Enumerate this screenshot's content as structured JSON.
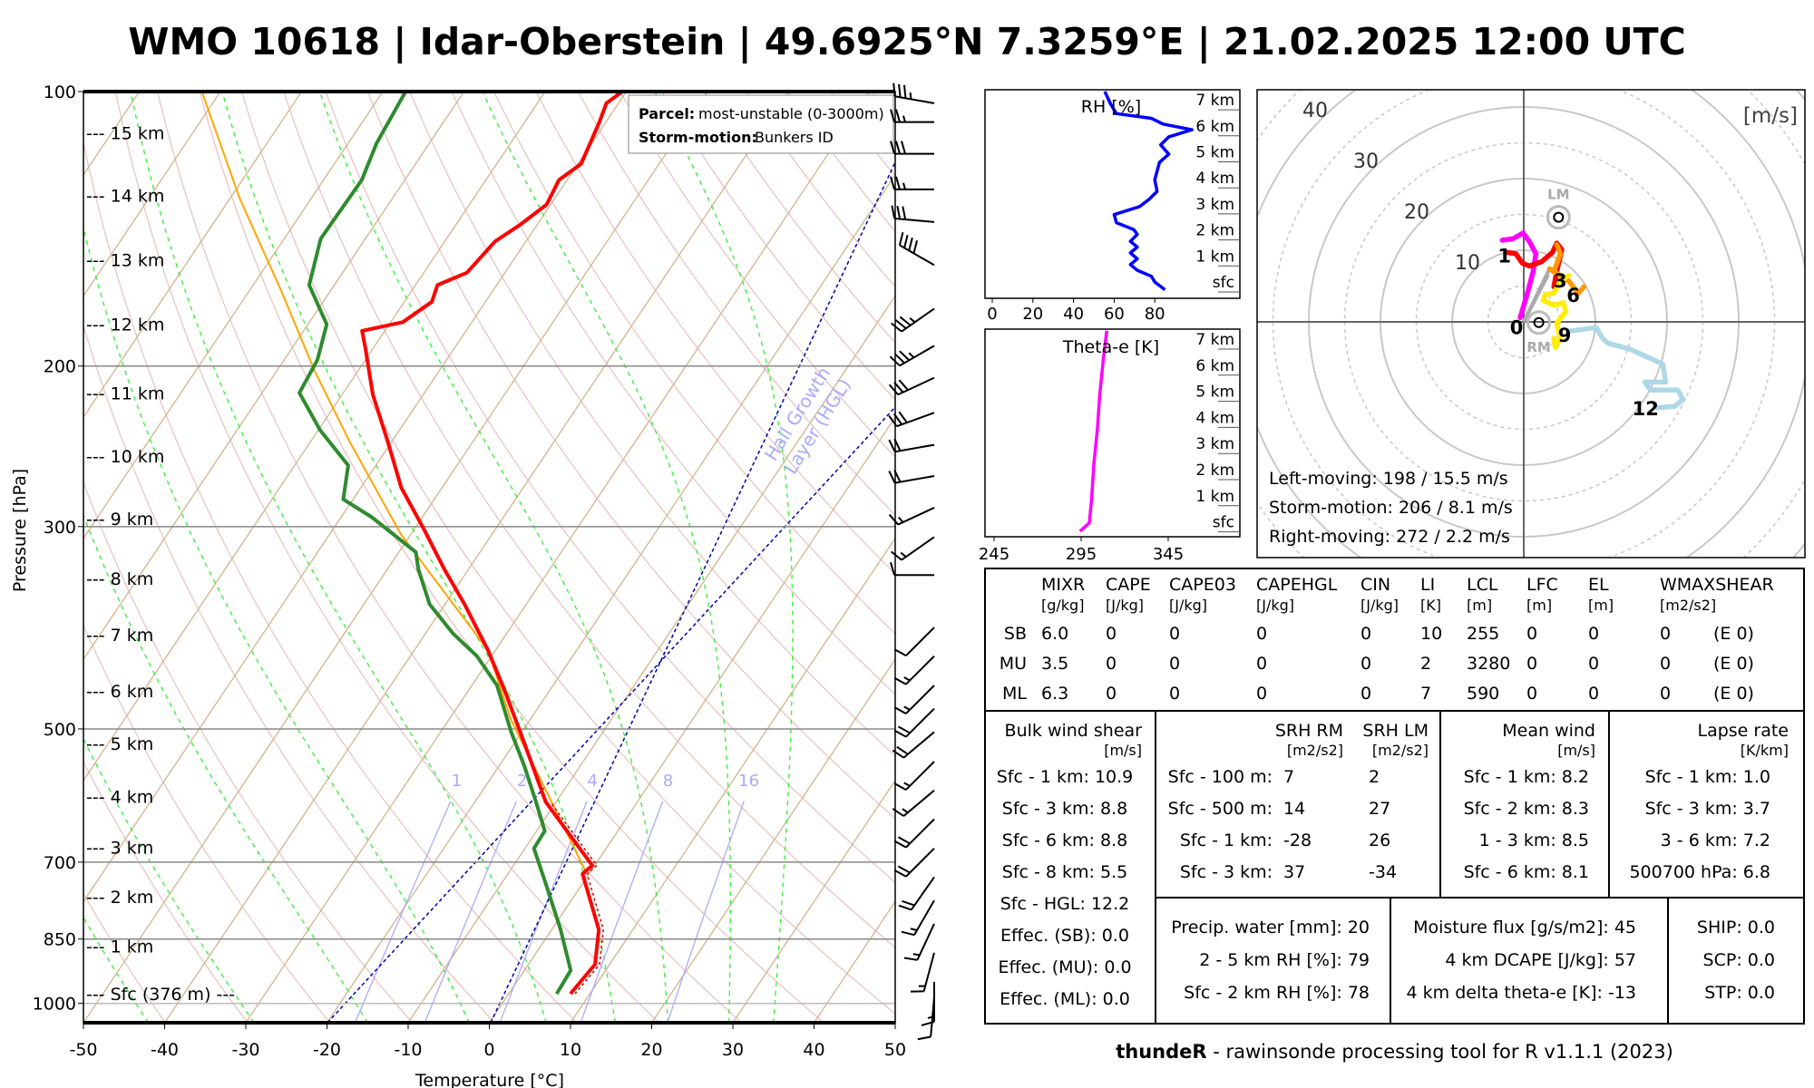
{
  "title": "WMO 10618 | Idar-Oberstein | 49.6925°N 7.3259°E | 21.02.2025 12:00 UTC",
  "footer": {
    "bold": "thundeR",
    "rest": " - rawinsonde processing tool for R v1.1.1 (2023)"
  },
  "chart_data": [
    {
      "type": "line",
      "name": "skew-T log-p diagram",
      "xlabel": "Temperature [°C]",
      "ylabel": "Pressure [hPa]",
      "xlim": [
        -50,
        50
      ],
      "ylim": [
        1050,
        100
      ],
      "x_ticks": [
        "-50",
        "-40",
        "-30",
        "-20",
        "-10",
        "0",
        "10",
        "20",
        "30",
        "40",
        "50"
      ],
      "p_ticks": [
        "100",
        "200",
        "300",
        "500",
        "700",
        "850",
        "1000"
      ],
      "mixing_ratio_labels": [
        "1",
        "2",
        "4",
        "8",
        "16"
      ],
      "hgl_label": [
        "Hail Growth",
        "Layer (HGL)"
      ],
      "legend": {
        "parcel_label": "Parcel:",
        "parcel_value": "most-unstable (0-3000m)",
        "storm_label": "Storm-motion:",
        "storm_value": "Bunkers ID"
      },
      "height_labels": [
        {
          "label": "--- 15 km",
          "p": 111
        },
        {
          "label": "--- 14 km",
          "p": 130
        },
        {
          "label": "--- 13 km",
          "p": 153
        },
        {
          "label": "--- 12 km",
          "p": 180
        },
        {
          "label": "--- 11 km",
          "p": 214
        },
        {
          "label": "--- 10 km",
          "p": 251
        },
        {
          "label": "--- 9 km",
          "p": 294
        },
        {
          "label": "--- 8 km",
          "p": 342
        },
        {
          "label": "--- 7 km",
          "p": 394
        },
        {
          "label": "--- 6 km",
          "p": 454
        },
        {
          "label": "--- 5 km",
          "p": 519
        },
        {
          "label": "--- 4 km",
          "p": 593
        },
        {
          "label": "--- 3 km",
          "p": 674
        },
        {
          "label": "--- 2 km",
          "p": 764
        },
        {
          "label": "--- 1 km",
          "p": 865
        },
        {
          "label": "--- Sfc (376 m) ---",
          "p": 976
        }
      ],
      "temperature": [
        [
          976,
          7.6
        ],
        [
          906,
          8.2
        ],
        [
          830,
          5.8
        ],
        [
          721,
          -0.8
        ],
        [
          706,
          -0.3
        ],
        [
          601,
          -11.3
        ],
        [
          519,
          -18.7
        ],
        [
          455,
          -25.4
        ],
        [
          410,
          -30.9
        ],
        [
          365,
          -37.6
        ],
        [
          334,
          -43
        ],
        [
          302,
          -48.8
        ],
        [
          272,
          -55
        ],
        [
          242,
          -60.5
        ],
        [
          215,
          -66.2
        ],
        [
          191,
          -71
        ],
        [
          183,
          -72.8
        ],
        [
          179,
          -68.5
        ],
        [
          170,
          -66.6
        ],
        [
          163,
          -67.3
        ],
        [
          158,
          -64.7
        ],
        [
          146,
          -63.8
        ],
        [
          140,
          -62.1
        ],
        [
          133,
          -60.5
        ],
        [
          125,
          -61
        ],
        [
          120,
          -59.6
        ],
        [
          108,
          -60.8
        ],
        [
          103,
          -61.5
        ],
        [
          100,
          -60.5
        ]
      ],
      "dewpoint": [
        [
          976,
          5.9
        ],
        [
          920,
          5.7
        ],
        [
          830,
          1.1
        ],
        [
          738,
          -4.6
        ],
        [
          676,
          -8.9
        ],
        [
          647,
          -9
        ],
        [
          601,
          -12.5
        ],
        [
          550,
          -16.8
        ],
        [
          504,
          -21.3
        ],
        [
          448,
          -26.9
        ],
        [
          416,
          -31.8
        ],
        [
          393,
          -36.6
        ],
        [
          365,
          -41.9
        ],
        [
          334,
          -46.2
        ],
        [
          320,
          -47.9
        ],
        [
          293,
          -56.2
        ],
        [
          280,
          -61.2
        ],
        [
          257,
          -63.4
        ],
        [
          235,
          -69.8
        ],
        [
          214,
          -75.4
        ],
        [
          197,
          -75.9
        ],
        [
          180,
          -77.7
        ],
        [
          163,
          -83.1
        ],
        [
          145,
          -85.5
        ],
        [
          125,
          -85.3
        ],
        [
          114,
          -86.5
        ],
        [
          100,
          -87.2
        ]
      ],
      "parcel": [
        [
          717,
          -0.6
        ],
        [
          619,
          -8.9
        ],
        [
          534,
          -17.3
        ],
        [
          489,
          -22.3
        ],
        [
          410,
          -30.9
        ],
        [
          306,
          -51.2
        ],
        [
          242,
          -65.2
        ],
        [
          203,
          -75.2
        ],
        [
          165,
          -86.2
        ],
        [
          131,
          -98.8
        ],
        [
          100,
          -112.3
        ]
      ],
      "wind_barbs": [
        [
          103,
          280,
          35
        ],
        [
          108,
          270,
          25
        ],
        [
          117,
          270,
          30
        ],
        [
          128,
          270,
          25
        ],
        [
          139,
          275,
          30
        ],
        [
          155,
          300,
          40
        ],
        [
          173,
          235,
          35
        ],
        [
          190,
          240,
          35
        ],
        [
          206,
          245,
          30
        ],
        [
          225,
          250,
          30
        ],
        [
          244,
          260,
          20
        ],
        [
          264,
          260,
          20
        ],
        [
          286,
          245,
          15
        ],
        [
          308,
          235,
          15
        ],
        [
          339,
          270,
          10
        ],
        [
          387,
          225,
          10
        ],
        [
          416,
          225,
          15
        ],
        [
          448,
          225,
          15
        ],
        [
          475,
          225,
          20
        ],
        [
          504,
          230,
          20
        ],
        [
          543,
          225,
          15
        ],
        [
          584,
          230,
          15
        ],
        [
          628,
          225,
          20
        ],
        [
          676,
          225,
          20
        ],
        [
          727,
          215,
          20
        ],
        [
          771,
          210,
          15
        ],
        [
          818,
          205,
          15
        ],
        [
          880,
          195,
          15
        ],
        [
          947,
          180,
          15
        ],
        [
          984,
          185,
          10
        ]
      ]
    },
    {
      "type": "line",
      "name": "hodograph",
      "unit_label": "[m/s]",
      "ring_labels": [
        "10",
        "20",
        "30",
        "40"
      ],
      "segments": [
        {
          "layer": "0-1 km",
          "color": "#ff00ff",
          "points": [
            [
              -0.5,
              0.6
            ],
            [
              0.4,
              3.6
            ],
            [
              1.3,
              7.0
            ],
            [
              1.7,
              9.5
            ],
            [
              0.8,
              11.2
            ],
            [
              -0.1,
              12.4
            ],
            [
              -1.5,
              11.6
            ],
            [
              -3.0,
              11.4
            ]
          ]
        },
        {
          "layer": "1-3 km",
          "color": "#ff0000",
          "points": [
            [
              -2.3,
              9.7
            ],
            [
              -1.1,
              9.5
            ],
            [
              -0.2,
              8.2
            ],
            [
              0.8,
              7.8
            ],
            [
              2.5,
              8.4
            ],
            [
              4.0,
              9.7
            ],
            [
              4.6,
              11.0
            ],
            [
              5.3,
              10.1
            ],
            [
              4.6,
              7.0
            ],
            [
              4.2,
              4.9
            ]
          ]
        },
        {
          "layer": "3-6 km",
          "color": "#ff9900",
          "points": [
            [
              4.6,
              10.8
            ],
            [
              5.1,
              9.5
            ],
            [
              4.2,
              7.0
            ],
            [
              3.6,
              7.4
            ],
            [
              6.3,
              5.7
            ],
            [
              7.6,
              4.0
            ],
            [
              8.4,
              4.9
            ]
          ]
        },
        {
          "layer": "6-9 km",
          "color": "#ffee00",
          "points": [
            [
              6.3,
              6.5
            ],
            [
              5.1,
              5.7
            ],
            [
              4.2,
              4.0
            ],
            [
              3.0,
              3.8
            ],
            [
              2.7,
              3.0
            ],
            [
              4.2,
              2.3
            ],
            [
              5.5,
              2.7
            ],
            [
              5.9,
              1.5
            ],
            [
              4.6,
              -0.2
            ],
            [
              5.1,
              -2.3
            ],
            [
              4.4,
              -3.6
            ],
            [
              4.2,
              -2.3
            ]
          ]
        },
        {
          "layer": "9-12 km",
          "color": "#add8e6",
          "points": [
            [
              6.3,
              -1.3
            ],
            [
              10.1,
              -0.8
            ],
            [
              11,
              -2.3
            ],
            [
              11.8,
              -3
            ],
            [
              14.8,
              -3.8
            ],
            [
              19.4,
              -5.9
            ],
            [
              19.8,
              -8.4
            ],
            [
              16.9,
              -8.4
            ],
            [
              17.7,
              -9.5
            ],
            [
              21.5,
              -9.5
            ],
            [
              22.2,
              -10.8
            ],
            [
              21.1,
              -11.8
            ],
            [
              18.6,
              -12.0
            ]
          ]
        }
      ],
      "mean_lines": [
        [
          [
            0,
            0
          ],
          [
            3.6,
            7.4
          ]
        ],
        [
          [
            0,
            0
          ],
          [
            3.4,
            6.6
          ]
        ]
      ],
      "height_marks": [
        {
          "label": "0",
          "u": -1,
          "v": -0.7
        },
        {
          "label": "1",
          "u": -2.7,
          "v": 9.3
        },
        {
          "label": "3",
          "u": 5.1,
          "v": 5.8
        },
        {
          "label": "6",
          "u": 6.9,
          "v": 3.8
        },
        {
          "label": "9",
          "u": 5.7,
          "v": -1.8
        },
        {
          "label": "12",
          "u": 17,
          "v": -12
        }
      ],
      "storm_markers": [
        {
          "label": "LM",
          "u": 4.85,
          "v": 14.6,
          "pos": "above"
        },
        {
          "label": "RM",
          "u": 2.1,
          "v": -0.1,
          "pos": "below"
        }
      ],
      "info": [
        "Left-moving: 198 / 15.5 m/s",
        "Storm-motion: 206 / 8.1 m/s",
        "Right-moving: 272 / 2.2 m/s"
      ]
    },
    {
      "type": "line",
      "name": "relative humidity profile",
      "label": "RH [%]",
      "xlim": [
        0,
        100
      ],
      "x_ticks": [
        "0",
        "20",
        "40",
        "60",
        "80"
      ],
      "km_labels": [
        "sfc",
        "1 km",
        "2 km",
        "3 km",
        "4 km",
        "5 km",
        "6 km",
        "7 km"
      ],
      "points": [
        [
          7.32,
          55.4
        ],
        [
          6.83,
          58.3
        ],
        [
          6.47,
          61.1
        ],
        [
          6.29,
          78.3
        ],
        [
          6.07,
          84
        ],
        [
          5.85,
          98.3
        ],
        [
          5.58,
          86.9
        ],
        [
          5.27,
          82.9
        ],
        [
          4.91,
          86.9
        ],
        [
          4.6,
          82.3
        ],
        [
          3.93,
          80
        ],
        [
          3.48,
          81.1
        ],
        [
          3.17,
          77.1
        ],
        [
          2.9,
          72.6
        ],
        [
          2.59,
          60
        ],
        [
          2.28,
          61.1
        ],
        [
          2.01,
          69.7
        ],
        [
          1.83,
          71.4
        ],
        [
          1.56,
          68
        ],
        [
          1.34,
          71.4
        ],
        [
          1.12,
          68
        ],
        [
          0.89,
          71.4
        ],
        [
          0.67,
          68
        ],
        [
          0.45,
          71.4
        ],
        [
          0.22,
          78.3
        ],
        [
          0.0,
          80
        ],
        [
          -0.3,
          85
        ]
      ]
    },
    {
      "type": "line",
      "name": "theta-e profile",
      "label": "Theta-e [K]",
      "x_ticks": [
        "245",
        "295",
        "345"
      ],
      "km_labels": [
        "sfc",
        "1 km",
        "2 km",
        "3 km",
        "4 km",
        "5 km",
        "6 km",
        "7 km"
      ],
      "points": [
        [
          -0.36,
          294.3
        ],
        [
          -0.04,
          299.7
        ],
        [
          0.85,
          301
        ],
        [
          2.2,
          302.3
        ],
        [
          3.54,
          304.3
        ],
        [
          4.87,
          305.7
        ],
        [
          6.2,
          307.7
        ],
        [
          7.32,
          309.7
        ]
      ]
    }
  ],
  "table": {
    "columns": [
      {
        "name": "MIXR",
        "unit": "[g/kg]"
      },
      {
        "name": "CAPE",
        "unit": "[J/kg]"
      },
      {
        "name": "CAPE03",
        "unit": "[J/kg]"
      },
      {
        "name": "CAPEHGL",
        "unit": "[J/kg]"
      },
      {
        "name": "CIN",
        "unit": "[J/kg]"
      },
      {
        "name": "LI",
        "unit": "[K]"
      },
      {
        "name": "LCL",
        "unit": "[m]"
      },
      {
        "name": "LFC",
        "unit": "[m]"
      },
      {
        "name": "EL",
        "unit": "[m]"
      },
      {
        "name": "WMAXSHEAR",
        "unit": "[m2/s2]"
      }
    ],
    "rows": [
      {
        "label": "SB",
        "values": [
          "6.0",
          "0",
          "0",
          "0",
          "0",
          "10",
          "255",
          "0",
          "0",
          "0"
        ],
        "extra": "(E 0)"
      },
      {
        "label": "MU",
        "values": [
          "3.5",
          "0",
          "0",
          "0",
          "0",
          "2",
          "3280",
          "0",
          "0",
          "0"
        ],
        "extra": "(E 0)"
      },
      {
        "label": "ML",
        "values": [
          "6.3",
          "0",
          "0",
          "0",
          "0",
          "7",
          "590",
          "0",
          "0",
          "0"
        ],
        "extra": "(E 0)"
      }
    ],
    "bulk_shear": {
      "title": "Bulk wind shear",
      "unit": "[m/s]",
      "rows": [
        "Sfc - 1 km: 10.9",
        "Sfc - 3 km: 8.8",
        "Sfc - 6 km: 8.8",
        "Sfc - 8 km: 5.5",
        "Sfc - HGL: 12.2",
        "Effec. (SB): 0.0",
        "Effec. (MU): 0.0",
        "Effec. (ML): 0.0"
      ]
    },
    "srh": {
      "title_rm": "SRH RM",
      "title_lm": "SRH LM",
      "unit_rm": "[m2/s2]",
      "unit_lm": "[m2/s2]",
      "rows": [
        {
          "label": "Sfc - 100 m:",
          "rm": "7",
          "lm": "2"
        },
        {
          "label": "Sfc - 500 m:",
          "rm": "14",
          "lm": "27"
        },
        {
          "label": "Sfc - 1 km:",
          "rm": "-28",
          "lm": "26"
        },
        {
          "label": "Sfc - 3 km:",
          "rm": "37",
          "lm": "-34"
        }
      ]
    },
    "mean_wind": {
      "title": "Mean wind",
      "unit": "[m/s]",
      "rows": [
        "Sfc - 1 km: 8.2",
        "Sfc - 2 km: 8.3",
        "1 - 3 km: 8.5",
        "Sfc - 6 km: 8.1"
      ]
    },
    "lapse_rate": {
      "title": "Lapse rate",
      "unit": "[K/km]",
      "rows": [
        "Sfc - 1 km: 1.0",
        "Sfc - 3 km: 3.7",
        "3 - 6 km: 7.2",
        "500700 hPa: 6.8"
      ]
    },
    "moisture": [
      "Precip. water [mm]: 20",
      "2 - 5 km RH [%]: 79",
      "Sfc - 2 km RH [%]: 78"
    ],
    "flux": [
      "Moisture flux [g/s/m2]: 45",
      "4 km DCAPE [J/kg]: 57",
      "4 km delta theta-e [K]: -13"
    ],
    "indices": [
      "SHIP: 0.0",
      "SCP: 0.0",
      "STP: 0.0"
    ]
  },
  "colors": {
    "temperature": "#ff0000",
    "dewpoint": "#2e8b2e",
    "parcel": "#ffa500",
    "rh": "#0000ff",
    "theta_e": "#ff00ff",
    "isotherm": "#d2b48c",
    "dry_adiabat": "#e8c0c0",
    "moist_adiabat": "#33ee33",
    "mixing_ratio": "#aaaaff",
    "hgl": "#aaaaff"
  }
}
